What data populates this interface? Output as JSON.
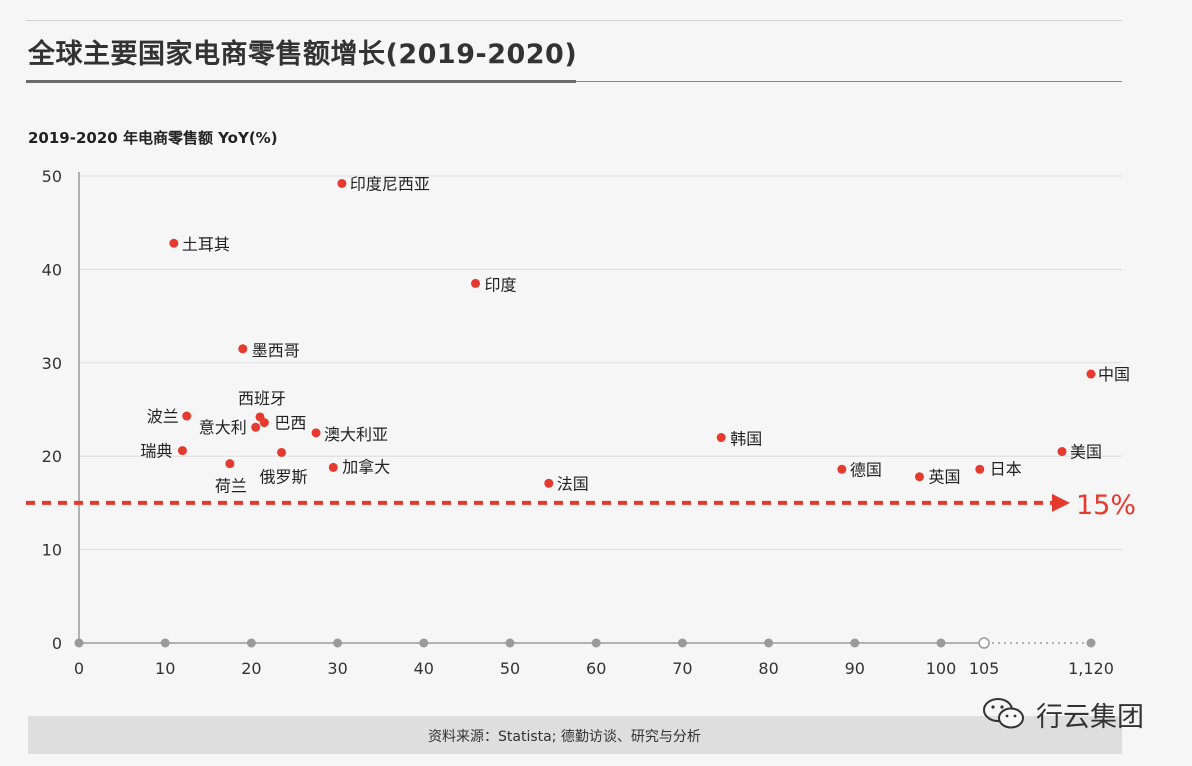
{
  "title": "全球主要国家电商零售额增长(2019-2020)",
  "source": "资料来源：Statista; 德勤访谈、研究与分析",
  "brand": {
    "name": "行云集团",
    "icon": "wechat-icon"
  },
  "colors": {
    "point": "#e63a2e",
    "threshold": "#e63a2e",
    "axis": "#9a9a9a",
    "grid": "#dddddd"
  },
  "chart_data": {
    "type": "scatter",
    "title": "全球主要国家电商零售额增长(2019-2020)",
    "ylabel": "2019-2020 年电商零售额 YoY(%)",
    "xlabel": "",
    "ylim": [
      0,
      50
    ],
    "yticks": [
      "0",
      "10",
      "20",
      "30",
      "40",
      "50"
    ],
    "xticks": [
      "0",
      "10",
      "20",
      "30",
      "40",
      "50",
      "60",
      "70",
      "80",
      "90",
      "100",
      "105",
      "1,120"
    ],
    "grid": "horizontal",
    "x_axis_note": "broken axis between 105 and 1,120",
    "threshold": {
      "value": 15,
      "label": "15%"
    },
    "points": [
      {
        "name": "印度尼西亚",
        "x": 30.5,
        "y": 49.2
      },
      {
        "name": "土耳其",
        "x": 11,
        "y": 42.8
      },
      {
        "name": "印度",
        "x": 46,
        "y": 38.5
      },
      {
        "name": "墨西哥",
        "x": 19,
        "y": 31.5
      },
      {
        "name": "中国",
        "x": 1120,
        "y": 28.8
      },
      {
        "name": "波兰",
        "x": 12.5,
        "y": 24.3
      },
      {
        "name": "西班牙",
        "x": 21,
        "y": 24.2
      },
      {
        "name": "巴西",
        "x": 21.5,
        "y": 23.6
      },
      {
        "name": "意大利",
        "x": 20.5,
        "y": 23.1
      },
      {
        "name": "澳大利亚",
        "x": 27.5,
        "y": 22.5
      },
      {
        "name": "韩国",
        "x": 74.5,
        "y": 22.0
      },
      {
        "name": "瑞典",
        "x": 12,
        "y": 20.6
      },
      {
        "name": "俄罗斯",
        "x": 23.5,
        "y": 20.4
      },
      {
        "name": "美国",
        "x": 110,
        "y": 20.5
      },
      {
        "name": "荷兰",
        "x": 17.5,
        "y": 19.2
      },
      {
        "name": "加拿大",
        "x": 29.5,
        "y": 18.8
      },
      {
        "name": "德国",
        "x": 88.5,
        "y": 18.6
      },
      {
        "name": "日本",
        "x": 104.5,
        "y": 18.6
      },
      {
        "name": "英国",
        "x": 97.5,
        "y": 17.8
      },
      {
        "name": "法国",
        "x": 54.5,
        "y": 17.1
      }
    ]
  }
}
